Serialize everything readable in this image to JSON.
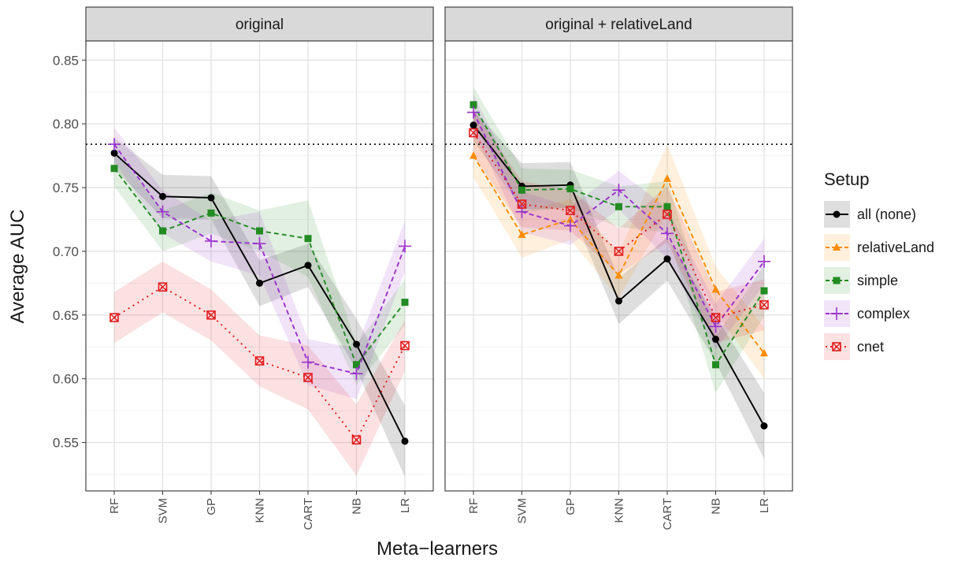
{
  "chart_data": {
    "type": "line",
    "xlabel": "Meta−learners",
    "ylabel": "Average AUC",
    "categories": [
      "RF",
      "SVM",
      "GP",
      "KNN",
      "CART",
      "NB",
      "LR"
    ],
    "ylim": [
      0.512,
      0.865
    ],
    "yticks": [
      "0.55",
      "0.60",
      "0.65",
      "0.70",
      "0.75",
      "0.80",
      "0.85"
    ],
    "reference_line": 0.784,
    "legend": {
      "title": "Setup",
      "position": "right"
    },
    "grid": true,
    "series_styles": [
      {
        "name": "all (none)",
        "color": "#000000",
        "dash": "none",
        "shape": "circle"
      },
      {
        "name": "relativeLand",
        "color": "#ff8c00",
        "dash": "dashed",
        "shape": "triangle"
      },
      {
        "name": "simple",
        "color": "#228b22",
        "dash": "dashed",
        "shape": "square"
      },
      {
        "name": "complex",
        "color": "#9932cc",
        "dash": "dashed",
        "shape": "plus"
      },
      {
        "name": "cnet",
        "color": "#e31a1c",
        "dash": "dotted",
        "shape": "cross-square"
      }
    ],
    "panels": [
      {
        "title": "original",
        "series": [
          {
            "name": "all (none)",
            "values": [
              0.777,
              0.743,
              0.742,
              0.675,
              0.689,
              0.627,
              0.551
            ],
            "band": [
              0.012,
              0.017,
              0.017,
              0.018,
              0.017,
              0.02,
              0.028
            ]
          },
          {
            "name": "simple",
            "values": [
              0.765,
              0.716,
              0.73,
              0.716,
              0.71,
              0.611,
              0.66
            ],
            "band": [
              0.014,
              0.016,
              0.016,
              0.016,
              0.03,
              0.016,
              0.018
            ]
          },
          {
            "name": "complex",
            "values": [
              0.784,
              0.731,
              0.708,
              0.706,
              0.613,
              0.604,
              0.704
            ],
            "band": [
              0.013,
              0.017,
              0.016,
              0.025,
              0.018,
              0.02,
              0.02
            ]
          },
          {
            "name": "cnet",
            "values": [
              0.648,
              0.672,
              0.65,
              0.614,
              0.601,
              0.552,
              0.626
            ],
            "band": [
              0.02,
              0.02,
              0.02,
              0.02,
              0.025,
              0.028,
              0.02
            ]
          }
        ]
      },
      {
        "title": "original + relativeLand",
        "series": [
          {
            "name": "all (none)",
            "values": [
              0.799,
              0.751,
              0.752,
              0.661,
              0.694,
              0.631,
              0.563
            ],
            "band": [
              0.012,
              0.018,
              0.018,
              0.018,
              0.017,
              0.018,
              0.026
            ]
          },
          {
            "name": "relativeLand",
            "values": [
              0.775,
              0.713,
              0.725,
              0.681,
              0.757,
              0.67,
              0.62
            ],
            "band": [
              0.017,
              0.018,
              0.016,
              0.018,
              0.027,
              0.018,
              0.02
            ]
          },
          {
            "name": "simple",
            "values": [
              0.815,
              0.748,
              0.749,
              0.735,
              0.735,
              0.611,
              0.669
            ],
            "band": [
              0.014,
              0.017,
              0.015,
              0.016,
              0.02,
              0.022,
              0.02
            ]
          },
          {
            "name": "complex",
            "values": [
              0.809,
              0.731,
              0.72,
              0.748,
              0.714,
              0.641,
              0.692
            ],
            "band": [
              0.014,
              0.016,
              0.015,
              0.015,
              0.02,
              0.018,
              0.018
            ]
          },
          {
            "name": "cnet",
            "values": [
              0.793,
              0.737,
              0.732,
              0.7,
              0.729,
              0.648,
              0.658
            ],
            "band": [
              0.018,
              0.018,
              0.016,
              0.018,
              0.022,
              0.02,
              0.02
            ]
          }
        ]
      }
    ]
  }
}
